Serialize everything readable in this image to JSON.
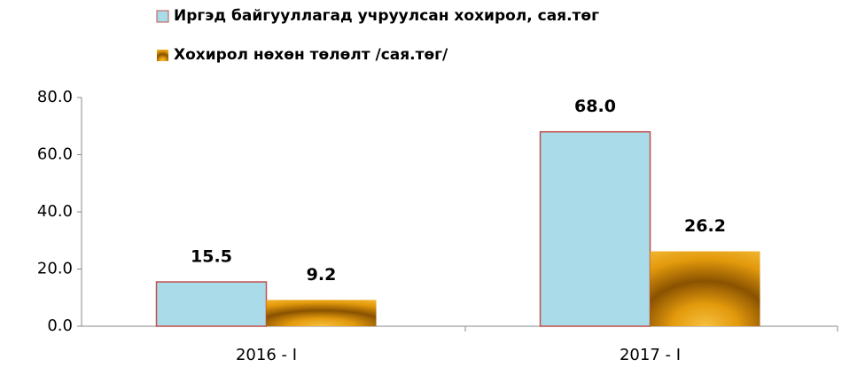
{
  "chart_data": {
    "type": "bar",
    "categories": [
      "2016 - I",
      "2017 - I"
    ],
    "series": [
      {
        "name": "Иргэд байгууллагад учруулсан хохирол, сая.төг",
        "color": "#a9dbe8",
        "values": [
          15.5,
          68.0
        ],
        "value_labels": [
          "15.5",
          "68.0"
        ]
      },
      {
        "name": "Хохирол нөхөн төлөлт /сая.төг/",
        "color": "#e39a0c",
        "values": [
          9.2,
          26.2
        ],
        "value_labels": [
          "9.2",
          "26.2"
        ]
      }
    ],
    "ylim": [
      0,
      80
    ],
    "yticks": [
      {
        "value": 0,
        "label": "0.0"
      },
      {
        "value": 20,
        "label": "20.0"
      },
      {
        "value": 40,
        "label": "40.0"
      },
      {
        "value": 60,
        "label": "60.0"
      },
      {
        "value": 80,
        "label": "80.0"
      }
    ],
    "grid": false
  }
}
